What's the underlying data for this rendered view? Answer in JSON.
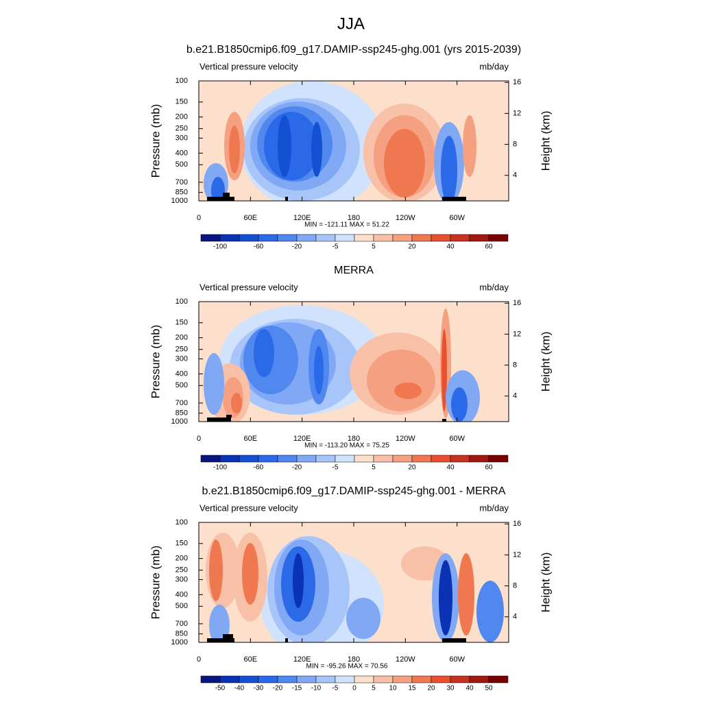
{
  "page_title": "JJA",
  "chart_data": [
    {
      "type": "contour",
      "title": "b.e21.B1850cmip6.f09_g17.DAMIP-ssp245-ghg.001 (yrs 2015-2039)",
      "left_title": "Vertical pressure velocity",
      "right_title": "mb/day",
      "y_label": "Pressure (mb)",
      "y2_label": "Height (km)",
      "xlim": [
        0,
        360
      ],
      "xticks": [
        0,
        {
          "value": 60,
          "label": "60E"
        },
        {
          "value": 120,
          "label": "120E"
        },
        180,
        {
          "value": 240,
          "label": "120W"
        },
        {
          "value": 300,
          "label": "60W"
        }
      ],
      "ylim": [
        1000,
        100
      ],
      "y_log": true,
      "yticks": [
        100,
        150,
        200,
        250,
        300,
        400,
        500,
        700,
        850,
        1000
      ],
      "y2lim": [
        0.7,
        16.2
      ],
      "y2ticks": [
        4,
        8,
        12,
        16
      ],
      "stats": "MIN = -121.11  MAX =  51.22",
      "colors": [
        "#0a1680",
        "#0a32b4",
        "#1450d2",
        "#2a6ae8",
        "#5088f0",
        "#80a8f5",
        "#a8c5fa",
        "#d0e2fc",
        "#fde0cc",
        "#f9c0a8",
        "#f5a080",
        "#f07850",
        "#e85030",
        "#c83020",
        "#a01810",
        "#780000"
      ],
      "colorbar_ticks": [
        -100,
        -60,
        -20,
        -5,
        5,
        20,
        40,
        60
      ]
    },
    {
      "type": "contour",
      "title": "MERRA",
      "left_title": "Vertical pressure velocity",
      "right_title": "mb/day",
      "y_label": "Pressure (mb)",
      "y2_label": "Height (km)",
      "xlim": [
        0,
        360
      ],
      "xticks": [
        0,
        {
          "value": 60,
          "label": "60E"
        },
        {
          "value": 120,
          "label": "120E"
        },
        180,
        {
          "value": 240,
          "label": "120W"
        },
        {
          "value": 300,
          "label": "60W"
        }
      ],
      "ylim": [
        1000,
        100
      ],
      "y_log": true,
      "yticks": [
        100,
        150,
        200,
        250,
        300,
        400,
        500,
        700,
        850,
        1000
      ],
      "y2lim": [
        0.7,
        16.2
      ],
      "y2ticks": [
        4,
        8,
        12,
        16
      ],
      "stats": "MIN = -113.20  MAX =  75.25",
      "colors": [
        "#0a1680",
        "#0a32b4",
        "#1450d2",
        "#2a6ae8",
        "#5088f0",
        "#80a8f5",
        "#a8c5fa",
        "#d0e2fc",
        "#fde0cc",
        "#f9c0a8",
        "#f5a080",
        "#f07850",
        "#e85030",
        "#c83020",
        "#a01810",
        "#780000"
      ],
      "colorbar_ticks": [
        -100,
        -60,
        -20,
        -5,
        5,
        20,
        40,
        60
      ]
    },
    {
      "type": "contour",
      "title": "b.e21.B1850cmip6.f09_g17.DAMIP-ssp245-ghg.001 - MERRA",
      "left_title": "Vertical pressure velocity",
      "right_title": "mb/day",
      "y_label": "Pressure (mb)",
      "y2_label": "Height (km)",
      "xlim": [
        0,
        360
      ],
      "xticks": [
        0,
        {
          "value": 60,
          "label": "60E"
        },
        {
          "value": 120,
          "label": "120E"
        },
        180,
        {
          "value": 240,
          "label": "120W"
        },
        {
          "value": 300,
          "label": "60W"
        }
      ],
      "ylim": [
        1000,
        100
      ],
      "y_log": true,
      "yticks": [
        100,
        150,
        200,
        250,
        300,
        400,
        500,
        700,
        850,
        1000
      ],
      "y2lim": [
        0.7,
        16.2
      ],
      "y2ticks": [
        4,
        8,
        12,
        16
      ],
      "stats": "MIN = -95.26  MAX =  70.56",
      "colors": [
        "#0a1680",
        "#0a32b4",
        "#1450d2",
        "#2a6ae8",
        "#5088f0",
        "#80a8f5",
        "#a8c5fa",
        "#d0e2fc",
        "#fde0cc",
        "#f9c0a8",
        "#f5a080",
        "#f07850",
        "#e85030",
        "#c83020",
        "#a01810",
        "#780000"
      ],
      "colorbar_ticks": [
        -50,
        -40,
        -30,
        -20,
        -15,
        -10,
        -5,
        0,
        5,
        10,
        15,
        20,
        30,
        40,
        50
      ]
    }
  ]
}
